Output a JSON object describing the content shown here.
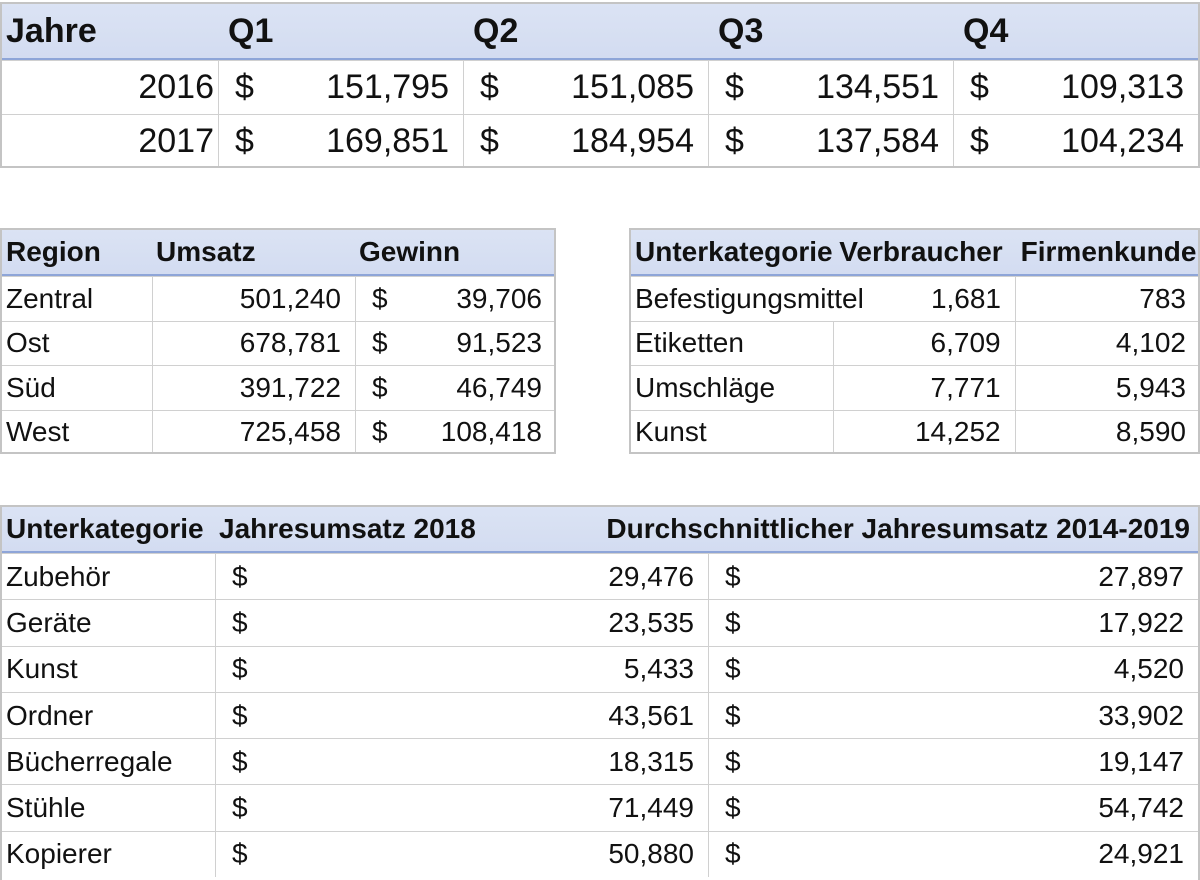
{
  "quarter_table": {
    "headers": [
      "Jahre",
      "Q1",
      "Q2",
      "Q3",
      "Q4"
    ],
    "currency": "$",
    "rows": [
      {
        "year": "2016",
        "values": [
          "151,795",
          "151,085",
          "134,551",
          "109,313"
        ]
      },
      {
        "year": "2017",
        "values": [
          "169,851",
          "184,954",
          "137,584",
          "104,234"
        ]
      }
    ]
  },
  "region_table": {
    "headers": [
      "Region",
      "Umsatz",
      "Gewinn"
    ],
    "currency": "$",
    "rows": [
      {
        "region": "Zentral",
        "umsatz": "501,240",
        "gewinn": "39,706"
      },
      {
        "region": "Ost",
        "umsatz": "678,781",
        "gewinn": "91,523"
      },
      {
        "region": "Süd",
        "umsatz": "391,722",
        "gewinn": "46,749"
      },
      {
        "region": "West",
        "umsatz": "725,458",
        "gewinn": "108,418"
      }
    ]
  },
  "customer_table": {
    "headers": [
      "Unterkategorie",
      "Verbraucher",
      "Firmenkunden"
    ],
    "rows": [
      {
        "name": "Befestigungsmittel",
        "verbraucher": "1,681",
        "firmenkunden": "783"
      },
      {
        "name": "Etiketten",
        "verbraucher": "6,709",
        "firmenkunden": "4,102"
      },
      {
        "name": "Umschläge",
        "verbraucher": "7,771",
        "firmenkunden": "5,943"
      },
      {
        "name": "Kunst",
        "verbraucher": "14,252",
        "firmenkunden": "8,590"
      }
    ]
  },
  "sales_table": {
    "headers": [
      "Unterkategorie",
      "Jahresumsatz 2018",
      "Durchschnittlicher Jahresumsatz 2014-2019"
    ],
    "currency": "$",
    "rows": [
      {
        "name": "Zubehör",
        "umsatz_2018": "29,476",
        "durchschnitt": "27,897"
      },
      {
        "name": "Geräte",
        "umsatz_2018": "23,535",
        "durchschnitt": "17,922"
      },
      {
        "name": "Kunst",
        "umsatz_2018": "5,433",
        "durchschnitt": "4,520"
      },
      {
        "name": "Ordner",
        "umsatz_2018": "43,561",
        "durchschnitt": "33,902"
      },
      {
        "name": "Bücherregale",
        "umsatz_2018": "18,315",
        "durchschnitt": "19,147"
      },
      {
        "name": "Stühle",
        "umsatz_2018": "71,449",
        "durchschnitt": "54,742"
      },
      {
        "name": "Kopierer",
        "umsatz_2018": "50,880",
        "durchschnitt": "24,921"
      }
    ]
  }
}
